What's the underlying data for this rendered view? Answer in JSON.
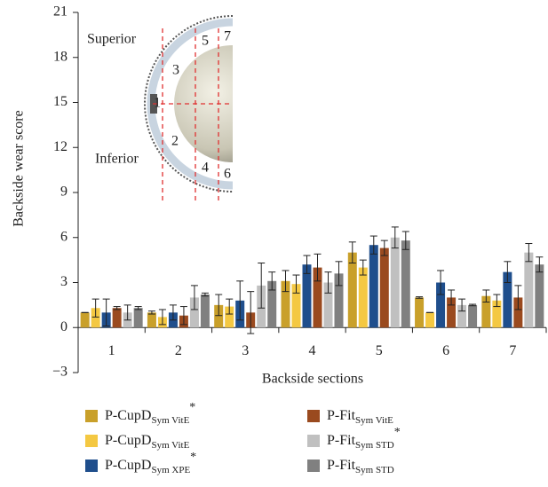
{
  "chart_data": {
    "type": "bar",
    "ylabel": "Backside wear score",
    "xlabel": "Backside sections",
    "categories": [
      "1",
      "2",
      "3",
      "4",
      "5",
      "6",
      "7"
    ],
    "ylim": [
      -3,
      21
    ],
    "yticks": [
      {
        "value": -3,
        "label": "−3"
      },
      0,
      3,
      6,
      9,
      12,
      15,
      18,
      21
    ],
    "series": [
      {
        "name": "P-CupD",
        "name_sub": "Sym VitE",
        "name_sup": "*",
        "color": "#c9a02a",
        "values": [
          1.0,
          1.0,
          1.5,
          3.1,
          5.0,
          2.0,
          2.1
        ],
        "errors": [
          0.0,
          0.1,
          0.7,
          0.7,
          0.7,
          0.05,
          0.4
        ]
      },
      {
        "name": "P-CupD",
        "name_sub": "Sym VitE",
        "color": "#f4c842",
        "values": [
          1.3,
          0.7,
          1.4,
          2.9,
          4.0,
          1.0,
          1.8
        ],
        "errors": [
          0.6,
          0.5,
          0.5,
          0.6,
          0.5,
          0.0,
          0.4
        ]
      },
      {
        "name": "P-CupD",
        "name_sub": "Sym XPE",
        "name_sup": "*",
        "color": "#1f4e8c",
        "values": [
          1.0,
          1.0,
          1.8,
          4.2,
          5.5,
          3.0,
          3.7
        ],
        "errors": [
          0.9,
          0.5,
          1.3,
          0.6,
          0.6,
          0.8,
          0.7
        ]
      },
      {
        "name": "P-Fit",
        "name_sub": "Sym VitE",
        "color": "#9a4a1f",
        "values": [
          1.3,
          0.8,
          1.0,
          4.0,
          5.3,
          2.0,
          2.0
        ],
        "errors": [
          0.1,
          0.6,
          1.4,
          0.9,
          0.5,
          0.5,
          0.8
        ]
      },
      {
        "name": "P-Fit",
        "name_sub": "Sym STD",
        "name_sup": "*",
        "color": "#c0c0c0",
        "values": [
          1.0,
          2.0,
          2.8,
          3.0,
          6.0,
          1.5,
          5.0
        ],
        "errors": [
          0.5,
          0.8,
          1.5,
          0.7,
          0.7,
          0.4,
          0.6
        ]
      },
      {
        "name": "P-Fit",
        "name_sub": "Sym STD",
        "color": "#808080",
        "values": [
          1.3,
          2.2,
          3.1,
          3.6,
          5.8,
          1.5,
          4.2
        ],
        "errors": [
          0.1,
          0.1,
          0.6,
          0.8,
          0.6,
          0.05,
          0.5
        ]
      }
    ]
  },
  "inset": {
    "superior": "Superior",
    "inferior": "Inferior",
    "sections": [
      "1",
      "2",
      "3",
      "4",
      "5",
      "6",
      "7"
    ]
  }
}
